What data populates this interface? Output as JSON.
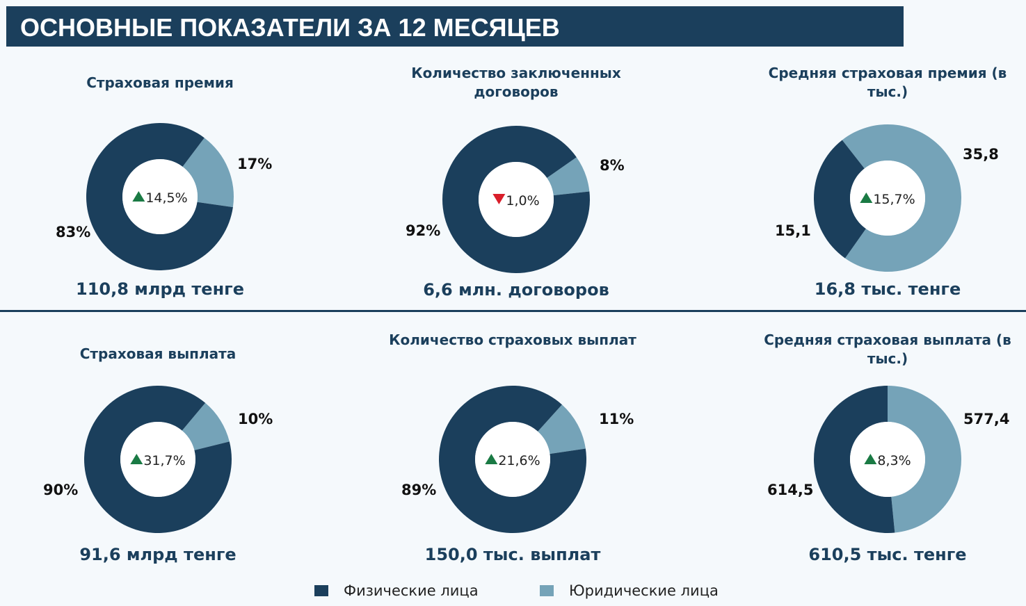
{
  "header": {
    "title": "ОСНОВНЫЕ ПОКАЗАТЕЛИ ЗА 12 МЕСЯЦЕВ"
  },
  "colors": {
    "individuals": "#1b3f5c",
    "legal": "#75a3b8",
    "up": "#1a7a44",
    "down": "#d91e2a"
  },
  "legend": {
    "individuals": "Физические лица",
    "legal": "Юридические лица"
  },
  "chart_data": [
    {
      "type": "pie",
      "title": "Страховая премия",
      "total": "110,8 млрд тенге",
      "change": "14,5%",
      "change_dir": "up",
      "values": {
        "individuals": 83,
        "legal": 17
      },
      "labels": {
        "individuals": "83%",
        "legal": "17%"
      }
    },
    {
      "type": "pie",
      "title": "Количество заключенных договоров",
      "total": "6,6 млн. договоров",
      "change": "1,0%",
      "change_dir": "down",
      "values": {
        "individuals": 92,
        "legal": 8
      },
      "labels": {
        "individuals": "92%",
        "legal": "8%"
      }
    },
    {
      "type": "pie",
      "title": "Средняя страховая премия (в тыс.)",
      "total": "16,8 тыс. тенге",
      "change": "15,7%",
      "change_dir": "up",
      "values": {
        "individuals": 15.1,
        "legal": 35.8
      },
      "labels": {
        "individuals": "15,1",
        "legal": "35,8"
      }
    },
    {
      "type": "pie",
      "title": "Страховая выплата",
      "total": "91,6 млрд тенге",
      "change": "31,7%",
      "change_dir": "up",
      "values": {
        "individuals": 90,
        "legal": 10
      },
      "labels": {
        "individuals": "90%",
        "legal": "10%"
      }
    },
    {
      "type": "pie",
      "title": "Количество страховых выплат",
      "total": "150,0 тыс. выплат",
      "change": "21,6%",
      "change_dir": "up",
      "values": {
        "individuals": 89,
        "legal": 11
      },
      "labels": {
        "individuals": "89%",
        "legal": "11%"
      }
    },
    {
      "type": "pie",
      "title": "Средняя страховая выплата (в тыс.)",
      "total": "610,5 тыс. тенге",
      "change": "8,3%",
      "change_dir": "up",
      "values": {
        "individuals": 614.5,
        "legal": 577.4
      },
      "labels": {
        "individuals": "614,5",
        "legal": "577,4"
      }
    }
  ]
}
